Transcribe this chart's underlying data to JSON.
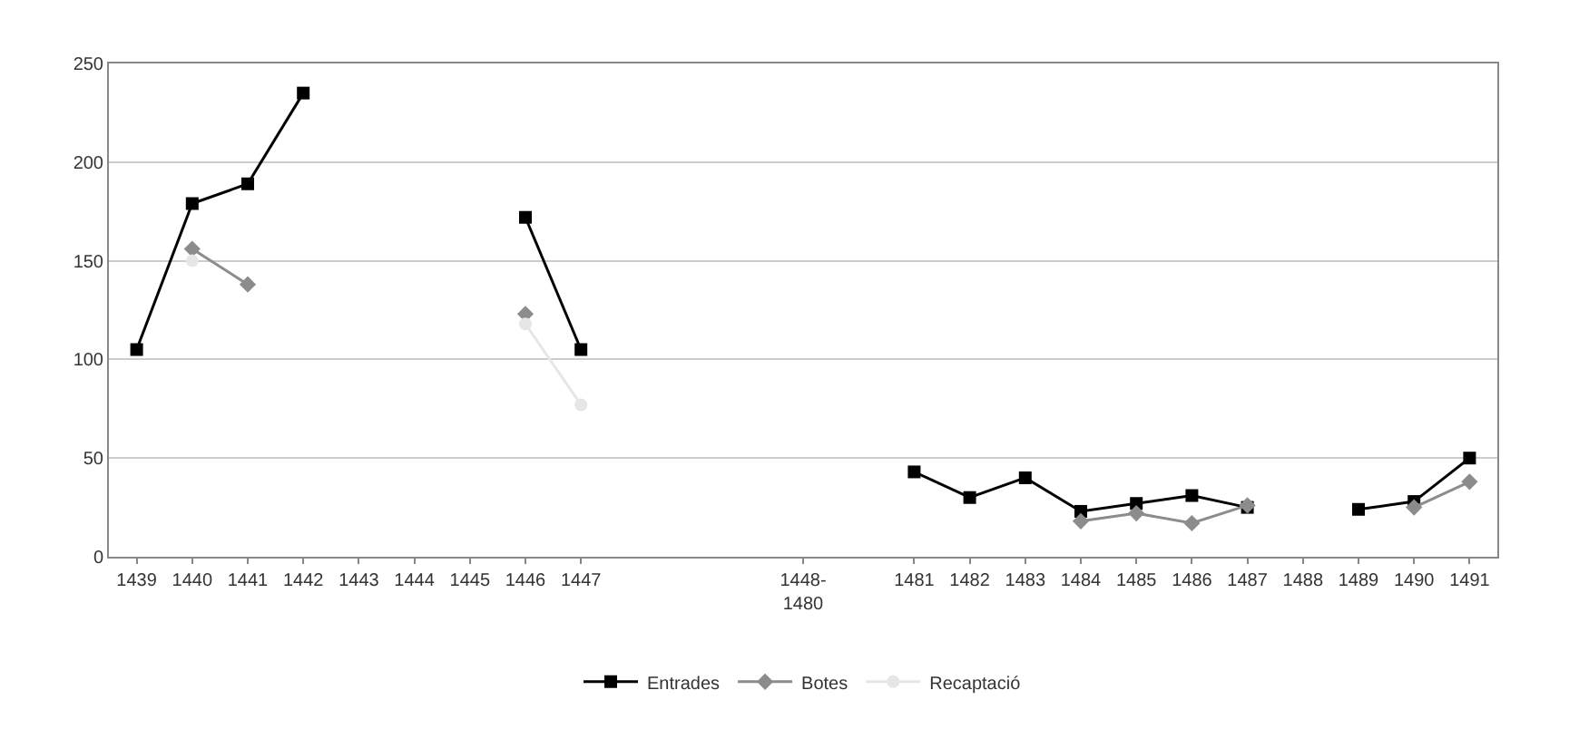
{
  "chart_data": {
    "type": "line",
    "categories": [
      "1439",
      "1440",
      "1441",
      "1442",
      "1443",
      "1444",
      "1445",
      "1446",
      "1447",
      null,
      null,
      null,
      "1448-\n1480",
      null,
      "1481",
      "1482",
      "1483",
      "1484",
      "1485",
      "1486",
      "1487",
      "1488",
      "1489",
      "1490",
      "1491"
    ],
    "series": [
      {
        "name": "Entrades",
        "color": "#000000",
        "marker": "square",
        "values": [
          105,
          179,
          189,
          235,
          null,
          null,
          null,
          172,
          105,
          null,
          null,
          null,
          null,
          null,
          43,
          30,
          40,
          23,
          27,
          31,
          25,
          null,
          24,
          28,
          50
        ]
      },
      {
        "name": "Botes",
        "color": "#8c8c8c",
        "marker": "diamond",
        "values": [
          null,
          156,
          138,
          null,
          null,
          null,
          null,
          123,
          null,
          null,
          null,
          null,
          null,
          null,
          null,
          null,
          null,
          18,
          22,
          17,
          26,
          null,
          null,
          25,
          38
        ]
      },
      {
        "name": "Recaptació",
        "color": "#e6e6e6",
        "marker": "circle",
        "values": [
          null,
          150,
          null,
          null,
          null,
          null,
          null,
          118,
          77,
          null,
          null,
          null,
          null,
          null,
          null,
          null,
          null,
          null,
          null,
          null,
          null,
          null,
          null,
          null,
          null
        ]
      }
    ],
    "ylim": [
      0,
      250
    ],
    "yticks": [
      0,
      50,
      100,
      150,
      200,
      250
    ],
    "grid": "y",
    "legend": "bottom",
    "line_style": "solid"
  }
}
